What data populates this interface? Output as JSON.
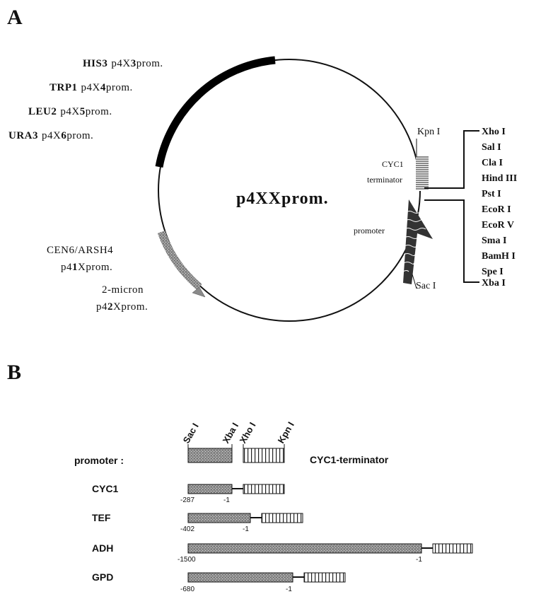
{
  "panel_a": {
    "letter": "A",
    "plasmid_name": "p4XXprom.",
    "markers": [
      {
        "gene": "HIS3",
        "pre": "p4X",
        "num": "3",
        "post": "prom."
      },
      {
        "gene": "TRP1",
        "pre": "p4X",
        "num": "4",
        "post": "prom."
      },
      {
        "gene": "LEU2",
        "pre": "p4X",
        "num": "5",
        "post": "prom."
      },
      {
        "gene": "URA3",
        "pre": "p4X",
        "num": "6",
        "post": "prom."
      }
    ],
    "cen_label": "CEN6/ARSH4",
    "cen_plasmid": {
      "pre": "p4",
      "num": "1",
      "post": "Xprom."
    },
    "micron_label": "2-micron",
    "micron_plasmid": {
      "pre": "p4",
      "num": "2",
      "post": "Xprom."
    },
    "kpn_label": "Kpn I",
    "cyc1_label": "CYC1",
    "terminator_label": "terminator",
    "promoter_label": "promoter",
    "sac_label": "Sac I",
    "mcs_sites": [
      "Xho I",
      "Sal I",
      "Cla I",
      "Hind III",
      "Pst I",
      "EcoR I",
      "EcoR V",
      "Sma I",
      "BamH I",
      "Spe I",
      "Xba I"
    ]
  },
  "panel_b": {
    "letter": "B",
    "header_sites": [
      "Sac I",
      "Xba I",
      "Xho I",
      "Kpn I"
    ],
    "promoter_row_label": "promoter :",
    "terminator_label": "CYC1-terminator",
    "rows": [
      {
        "name": "CYC1",
        "start": "-287",
        "end": "-1"
      },
      {
        "name": "TEF",
        "start": "-402",
        "end": "-1"
      },
      {
        "name": "ADH",
        "start": "-1500",
        "end": "-1"
      },
      {
        "name": "GPD",
        "start": "-680",
        "end": "-1"
      }
    ]
  }
}
